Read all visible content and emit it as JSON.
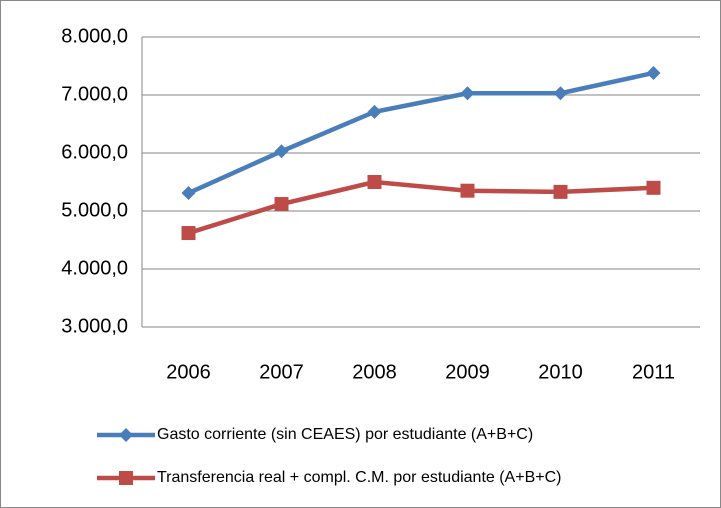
{
  "chart_data": {
    "type": "line",
    "categories": [
      "2006",
      "2007",
      "2008",
      "2009",
      "2010",
      "2011"
    ],
    "series": [
      {
        "name": "Gasto corriente (sin CEAES) por estudiante (A+B+C)",
        "color": "#4a7ebb",
        "marker": "diamond",
        "values": [
          5310,
          6030,
          6710,
          7030,
          7030,
          7380
        ]
      },
      {
        "name": "Transferencia real + compl. C.M. por estudiante (A+B+C)",
        "color": "#be4b48",
        "marker": "square",
        "values": [
          4620,
          5120,
          5500,
          5350,
          5330,
          5400
        ]
      }
    ],
    "ylim": [
      3000,
      8000
    ],
    "yticks": [
      {
        "value": 3000,
        "label": "3.000,0"
      },
      {
        "value": 4000,
        "label": "4.000,0"
      },
      {
        "value": 5000,
        "label": "5.000,0"
      },
      {
        "value": 6000,
        "label": "6.000,0"
      },
      {
        "value": 7000,
        "label": "7.000,0"
      },
      {
        "value": 8000,
        "label": "8.000,0"
      }
    ],
    "grid": true,
    "legend": "bottom"
  }
}
